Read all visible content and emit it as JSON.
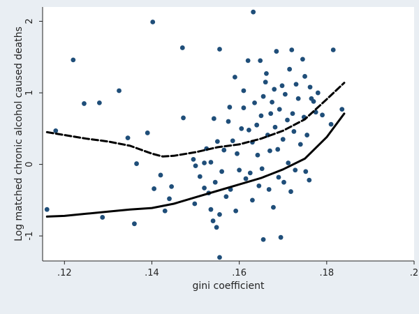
{
  "chart_data": {
    "type": "scatter",
    "xlabel": "gini coefficient",
    "ylabel": "Log matched chronic alcohol caused deaths",
    "xlim": [
      0.115,
      0.2
    ],
    "ylim": [
      -1.35,
      2.2
    ],
    "x_ticks": [
      0.12,
      0.14,
      0.16,
      0.18,
      0.2
    ],
    "x_tick_labels": [
      ".12",
      ".14",
      ".16",
      ".18",
      ".2"
    ],
    "y_ticks": [
      -1,
      0,
      1,
      2
    ],
    "y_tick_labels": [
      "-1",
      "0",
      "1",
      "2"
    ],
    "grid": false,
    "legend": "none",
    "colors": {
      "background": "#e9eef3",
      "plot_area": "#ffffff",
      "points": "#1f4e79",
      "lines": "#000000"
    },
    "series": [
      {
        "type": "scatter",
        "points": [
          [
            0.116,
            -0.63
          ],
          [
            0.118,
            0.47
          ],
          [
            0.122,
            1.46
          ],
          [
            0.1245,
            0.85
          ],
          [
            0.128,
            0.86
          ],
          [
            0.1287,
            -0.74
          ],
          [
            0.1325,
            1.03
          ],
          [
            0.1345,
            0.37
          ],
          [
            0.136,
            -0.83
          ],
          [
            0.1365,
            0.01
          ],
          [
            0.139,
            0.44
          ],
          [
            0.1402,
            1.99
          ],
          [
            0.1405,
            -0.34
          ],
          [
            0.142,
            -0.15
          ],
          [
            0.143,
            -0.65
          ],
          [
            0.144,
            -0.48
          ],
          [
            0.1445,
            -0.31
          ],
          [
            0.147,
            1.63
          ],
          [
            0.1472,
            0.65
          ],
          [
            0.1495,
            0.07
          ],
          [
            0.1498,
            -0.55
          ],
          [
            0.15,
            -0.02
          ],
          [
            0.151,
            -0.17
          ],
          [
            0.152,
            0.02
          ],
          [
            0.152,
            -0.33
          ],
          [
            0.1525,
            0.22
          ],
          [
            0.153,
            -0.4
          ],
          [
            0.1535,
            0.03
          ],
          [
            0.1535,
            -0.63
          ],
          [
            0.154,
            -0.79
          ],
          [
            0.1542,
            0.64
          ],
          [
            0.1545,
            -0.25
          ],
          [
            0.1548,
            -0.88
          ],
          [
            0.155,
            0.32
          ],
          [
            0.1555,
            1.61
          ],
          [
            0.1555,
            -0.7
          ],
          [
            0.1555,
            -1.3
          ],
          [
            0.156,
            -0.1
          ],
          [
            0.1565,
            0.2
          ],
          [
            0.157,
            -0.45
          ],
          [
            0.1575,
            0.6
          ],
          [
            0.1578,
            0.8
          ],
          [
            0.158,
            -0.35
          ],
          [
            0.1585,
            0.33
          ],
          [
            0.159,
            1.22
          ],
          [
            0.1592,
            -0.65
          ],
          [
            0.1595,
            0.15
          ],
          [
            0.16,
            -0.08
          ],
          [
            0.1605,
            0.5
          ],
          [
            0.161,
            1.03
          ],
          [
            0.161,
            0.79
          ],
          [
            0.1615,
            -0.2
          ],
          [
            0.162,
            1.45
          ],
          [
            0.1622,
            0.48
          ],
          [
            0.1625,
            -0.12
          ],
          [
            0.163,
            0.31
          ],
          [
            0.163,
            -0.5
          ],
          [
            0.1632,
            2.13
          ],
          [
            0.1635,
            0.86
          ],
          [
            0.164,
            0.55
          ],
          [
            0.1642,
            0.13
          ],
          [
            0.1645,
            -0.3
          ],
          [
            0.1648,
            1.45
          ],
          [
            0.165,
            0.68
          ],
          [
            0.1652,
            -0.06
          ],
          [
            0.1655,
            0.95
          ],
          [
            0.1655,
            -1.05
          ],
          [
            0.166,
            1.15
          ],
          [
            0.1662,
            1.27
          ],
          [
            0.1665,
            0.41
          ],
          [
            0.1668,
            -0.35
          ],
          [
            0.167,
            0.19
          ],
          [
            0.1672,
            0.71
          ],
          [
            0.1675,
            0.87
          ],
          [
            0.1678,
            -0.6
          ],
          [
            0.168,
            1.05
          ],
          [
            0.1682,
            0.52
          ],
          [
            0.1685,
            1.58
          ],
          [
            0.1688,
            0.21
          ],
          [
            0.169,
            -0.18
          ],
          [
            0.1692,
            0.77
          ],
          [
            0.1695,
            -1.02
          ],
          [
            0.1698,
            1.1
          ],
          [
            0.17,
            0.35
          ],
          [
            0.1702,
            -0.25
          ],
          [
            0.1705,
            0.98
          ],
          [
            0.171,
            0.62
          ],
          [
            0.1712,
            0.02
          ],
          [
            0.1715,
            1.33
          ],
          [
            0.1718,
            -0.38
          ],
          [
            0.172,
            1.6
          ],
          [
            0.1722,
            0.71
          ],
          [
            0.1725,
            0.46
          ],
          [
            0.1728,
            -0.08
          ],
          [
            0.173,
            1.12
          ],
          [
            0.1735,
            0.92
          ],
          [
            0.174,
            0.28
          ],
          [
            0.1745,
            1.47
          ],
          [
            0.1748,
            0.66
          ],
          [
            0.175,
            1.23
          ],
          [
            0.1752,
            -0.1
          ],
          [
            0.1755,
            0.41
          ],
          [
            0.176,
            -0.22
          ],
          [
            0.1762,
            1.08
          ],
          [
            0.1765,
            0.92
          ],
          [
            0.177,
            0.88
          ],
          [
            0.1775,
            0.73
          ],
          [
            0.178,
            1.0
          ],
          [
            0.179,
            0.69
          ],
          [
            0.181,
            0.56
          ],
          [
            0.1815,
            1.6
          ],
          [
            0.1835,
            0.77
          ]
        ]
      },
      {
        "type": "line",
        "style": "dashed",
        "points": [
          [
            0.116,
            0.45
          ],
          [
            0.12,
            0.41
          ],
          [
            0.125,
            0.36
          ],
          [
            0.13,
            0.32
          ],
          [
            0.135,
            0.26
          ],
          [
            0.14,
            0.15
          ],
          [
            0.1425,
            0.11
          ],
          [
            0.145,
            0.12
          ],
          [
            0.15,
            0.17
          ],
          [
            0.155,
            0.24
          ],
          [
            0.16,
            0.28
          ],
          [
            0.165,
            0.36
          ],
          [
            0.17,
            0.47
          ],
          [
            0.175,
            0.63
          ],
          [
            0.18,
            0.91
          ],
          [
            0.184,
            1.14
          ]
        ]
      },
      {
        "type": "line",
        "style": "solid",
        "points": [
          [
            0.116,
            -0.73
          ],
          [
            0.12,
            -0.72
          ],
          [
            0.125,
            -0.69
          ],
          [
            0.13,
            -0.66
          ],
          [
            0.135,
            -0.63
          ],
          [
            0.14,
            -0.61
          ],
          [
            0.145,
            -0.55
          ],
          [
            0.15,
            -0.46
          ],
          [
            0.155,
            -0.37
          ],
          [
            0.16,
            -0.28
          ],
          [
            0.165,
            -0.19
          ],
          [
            0.17,
            -0.07
          ],
          [
            0.175,
            0.08
          ],
          [
            0.18,
            0.38
          ],
          [
            0.184,
            0.71
          ]
        ]
      }
    ]
  }
}
